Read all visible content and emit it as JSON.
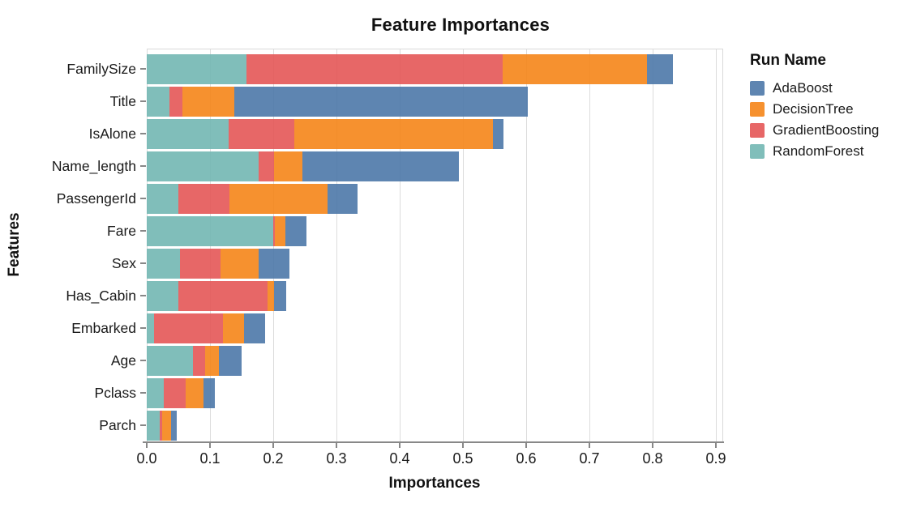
{
  "title": "Feature Importances",
  "axes": {
    "x_title": "Importances",
    "y_title": "Features",
    "x_ticks": [
      "0.0",
      "0.1",
      "0.2",
      "0.3",
      "0.4",
      "0.5",
      "0.6",
      "0.7",
      "0.8",
      "0.9"
    ]
  },
  "legend": {
    "title": "Run Name",
    "items": [
      "AdaBoost",
      "DecisionTree",
      "GradientBoosting",
      "RandomForest"
    ]
  },
  "chart_data": {
    "type": "bar",
    "orientation": "horizontal",
    "stacked": true,
    "title": "Feature Importances",
    "xlabel": "Importances",
    "ylabel": "Features",
    "xlim": [
      0,
      0.91
    ],
    "x_tick_values": [
      0.0,
      0.1,
      0.2,
      0.3,
      0.4,
      0.5,
      0.6,
      0.7,
      0.8,
      0.9
    ],
    "grid": true,
    "legend_title": "Run Name",
    "legend_position": "right",
    "categories": [
      "FamilySize",
      "Title",
      "IsAlone",
      "Name_length",
      "PassengerId",
      "Fare",
      "Sex",
      "Has_Cabin",
      "Embarked",
      "Age",
      "Pclass",
      "Parch"
    ],
    "series": [
      {
        "name": "RandomForest",
        "color": "#72b7b2",
        "values": [
          0.158,
          0.036,
          0.13,
          0.177,
          0.05,
          0.2,
          0.053,
          0.05,
          0.012,
          0.073,
          0.027,
          0.021
        ]
      },
      {
        "name": "GradientBoosting",
        "color": "#e45756",
        "values": [
          0.405,
          0.02,
          0.103,
          0.024,
          0.081,
          0.002,
          0.064,
          0.141,
          0.108,
          0.019,
          0.034,
          0.003
        ]
      },
      {
        "name": "DecisionTree",
        "color": "#f58518",
        "values": [
          0.228,
          0.082,
          0.314,
          0.045,
          0.155,
          0.017,
          0.06,
          0.01,
          0.034,
          0.022,
          0.029,
          0.015
        ]
      },
      {
        "name": "AdaBoost",
        "color": "#4c78a8",
        "values": [
          0.041,
          0.464,
          0.017,
          0.247,
          0.047,
          0.034,
          0.049,
          0.02,
          0.033,
          0.036,
          0.018,
          0.008
        ]
      }
    ],
    "totals": [
      0.832,
      0.602,
      0.564,
      0.493,
      0.333,
      0.253,
      0.226,
      0.221,
      0.187,
      0.15,
      0.108,
      0.047
    ]
  }
}
